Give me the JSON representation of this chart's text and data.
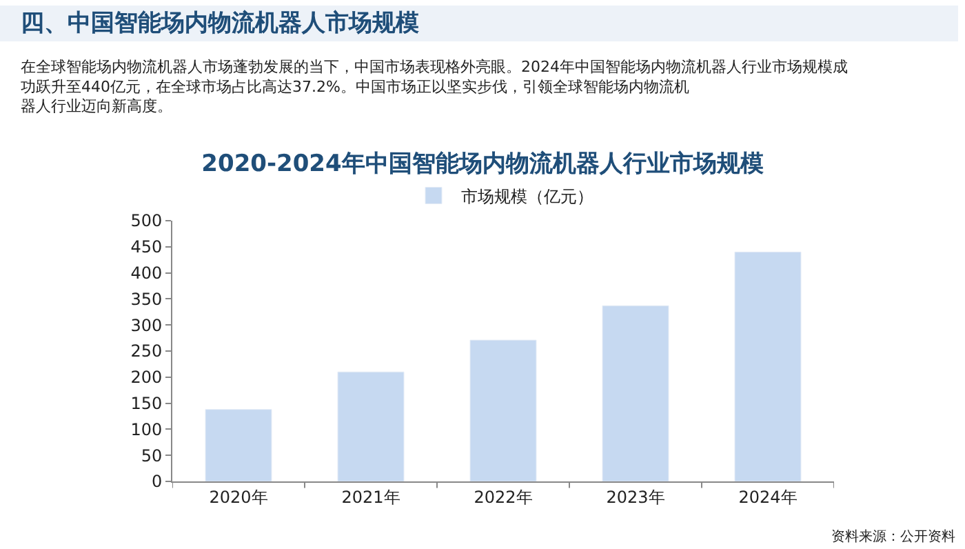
{
  "chart_data": {
    "type": "bar",
    "title": "2020-2024年中国智能场内物流机器人行业市场规模",
    "annotations": [
      "四、中国智能场内物流机器人市场规模",
      "在全球智能场内物流机器人市场蓬勃发展的当下，中国市场表现格外亮眼。2024年中国智能场内物流机器人行业市场规模成功跃升至440亿元，在全球市场占比高达37.2%。中国市场正以坚实步伐，引领全球智能场内物流机器人行业迈向新高度。",
      "资料来源：公开资料"
    ],
    "categories": [
      "2020年",
      "2021年",
      "2022年",
      "2023年",
      "2024年"
    ],
    "series": [
      {
        "name": "市场规模（亿元）",
        "color": "#c6d9f1",
        "values": [
          138,
          210,
          271,
          337,
          440
        ]
      }
    ],
    "ylim": [
      0,
      500
    ],
    "yticks": [
      0,
      50,
      100,
      150,
      200,
      250,
      300,
      350,
      400,
      450,
      500
    ],
    "legend": "top"
  }
}
